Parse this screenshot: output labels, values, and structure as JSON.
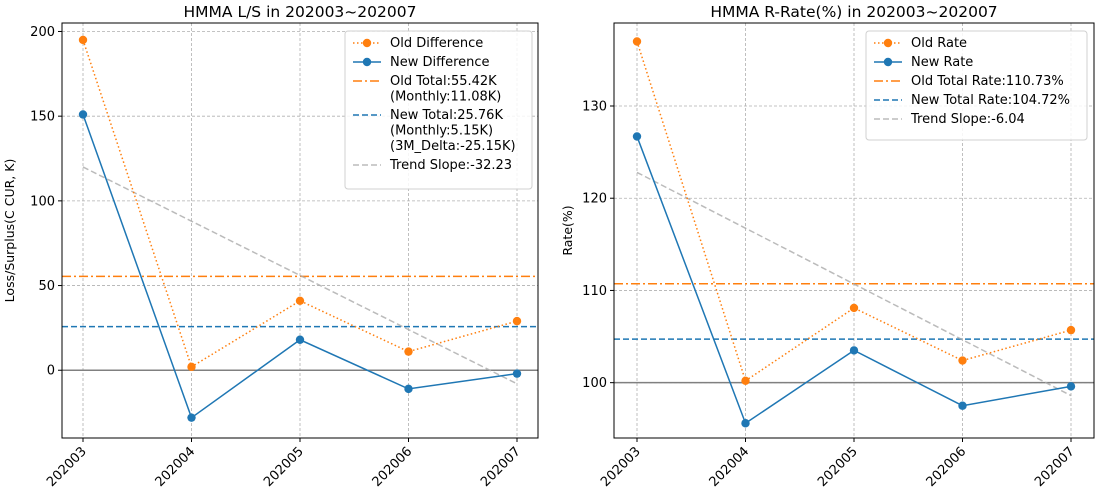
{
  "chart_data": [
    {
      "type": "line",
      "title": "HMMA L/S in 202003~202007",
      "xlabel": "",
      "ylabel": "Loss/Surplus(C CUR, K)",
      "categories": [
        "202003",
        "202004",
        "202005",
        "202006",
        "202007"
      ],
      "ylim": [
        -40,
        205
      ],
      "yticks": [
        0,
        50,
        100,
        150,
        200
      ],
      "grid": true,
      "legend_position": "top-right",
      "series": [
        {
          "name": "Old Difference",
          "values": [
            195,
            2,
            41,
            11,
            29
          ],
          "color": "#ff7f0e",
          "style": "dotted",
          "marker": "circle"
        },
        {
          "name": "New Difference",
          "values": [
            151,
            -28,
            18,
            -11,
            -2
          ],
          "color": "#1f77b4",
          "style": "solid",
          "marker": "circle"
        }
      ],
      "reference_lines": [
        {
          "label": "Old Total:55.42K\n(Monthly:11.08K)",
          "value": 55.42,
          "color": "#ff7f0e",
          "style": "dashdot"
        },
        {
          "label": "New Total:25.76K\n(Monthly:5.15K)\n(3M_Delta:-25.15K)",
          "value": 25.76,
          "color": "#1f77b4",
          "style": "dashed"
        },
        {
          "label": "Trend Slope:-32.23",
          "start": 120,
          "end": -8,
          "color": "#aaaaaa",
          "style": "dashed"
        }
      ],
      "baseline": 0
    },
    {
      "type": "line",
      "title": "HMMA R-Rate(%) in 202003~202007",
      "xlabel": "",
      "ylabel": "Rate(%)",
      "categories": [
        "202003",
        "202004",
        "202005",
        "202006",
        "202007"
      ],
      "ylim": [
        94,
        139
      ],
      "yticks": [
        100,
        110,
        120,
        130
      ],
      "grid": true,
      "legend_position": "top-right",
      "series": [
        {
          "name": "Old Rate",
          "values": [
            137,
            100.2,
            108.1,
            102.4,
            105.7
          ],
          "color": "#ff7f0e",
          "style": "dotted",
          "marker": "circle"
        },
        {
          "name": "New Rate",
          "values": [
            126.7,
            95.6,
            103.5,
            97.5,
            99.6
          ],
          "color": "#1f77b4",
          "style": "solid",
          "marker": "circle"
        }
      ],
      "reference_lines": [
        {
          "label": "Old Total Rate:110.73%",
          "value": 110.73,
          "color": "#ff7f0e",
          "style": "dashdot"
        },
        {
          "label": "New Total Rate:104.72%",
          "value": 104.72,
          "color": "#1f77b4",
          "style": "dashed"
        },
        {
          "label": "Trend Slope:-6.04",
          "start": 122.8,
          "end": 98.6,
          "color": "#aaaaaa",
          "style": "dashed"
        }
      ],
      "baseline": 100
    }
  ]
}
